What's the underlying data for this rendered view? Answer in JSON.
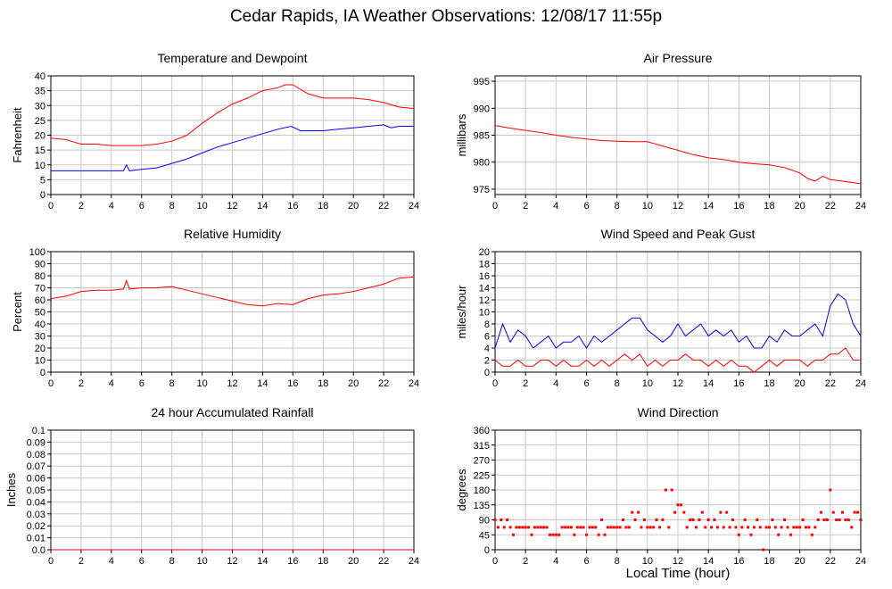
{
  "page": {
    "title": "Cedar Rapids, IA Weather Observations: 12/08/17 11:55p",
    "xlabel": "Local Time (hour)"
  },
  "chart_data": [
    {
      "id": "temp",
      "type": "line",
      "title": "Temperature and Dewpoint",
      "ylabel": "Fahrenheit",
      "xlim": [
        0,
        24
      ],
      "ylim": [
        0,
        40
      ],
      "yticks": [
        0,
        5,
        10,
        15,
        20,
        25,
        30,
        35,
        40
      ],
      "xticks": [
        0,
        2,
        4,
        6,
        8,
        10,
        12,
        14,
        16,
        18,
        20,
        22,
        24
      ],
      "grid": true,
      "series": [
        {
          "color": "#ff0000",
          "x": [
            0,
            1,
            2,
            3,
            4,
            5,
            6,
            7,
            8,
            9,
            10,
            11,
            12,
            13,
            14,
            15,
            15.5,
            16,
            17,
            18,
            19,
            20,
            21,
            22,
            23,
            24
          ],
          "y": [
            19,
            18.5,
            17,
            17,
            16.5,
            16.5,
            16.5,
            17,
            18,
            20,
            24,
            27.5,
            30.5,
            32.5,
            35,
            36,
            37,
            37,
            34,
            32.5,
            32.5,
            32.5,
            32,
            31,
            29.5,
            29
          ]
        },
        {
          "color": "#0000ff",
          "x": [
            0,
            1,
            2,
            3,
            4,
            4.8,
            5,
            5.2,
            6,
            7,
            8,
            9,
            10,
            11,
            12,
            13,
            14,
            15,
            15.9,
            16.5,
            17,
            18,
            19,
            20,
            21,
            22,
            22.5,
            23,
            24
          ],
          "y": [
            8,
            8,
            8,
            8,
            8,
            8,
            10,
            8,
            8.5,
            9,
            10.5,
            12,
            14,
            16,
            17.5,
            19,
            20.5,
            22,
            23,
            21.5,
            21.5,
            21.5,
            22,
            22.5,
            23,
            23.5,
            22.5,
            23,
            23
          ]
        }
      ]
    },
    {
      "id": "pres",
      "type": "line",
      "title": "Air Pressure",
      "ylabel": "millibars",
      "xlim": [
        0,
        24
      ],
      "ylim": [
        974,
        996
      ],
      "yticks": [
        975,
        980,
        985,
        990,
        995
      ],
      "xticks": [
        0,
        2,
        4,
        6,
        8,
        10,
        12,
        14,
        16,
        18,
        20,
        22,
        24
      ],
      "grid": true,
      "series": [
        {
          "color": "#ff0000",
          "x": [
            0,
            1,
            2,
            3,
            4,
            5,
            6,
            7,
            8,
            9,
            10,
            11,
            12,
            13,
            14,
            15,
            16,
            17,
            18,
            19,
            20,
            20.5,
            21,
            21.5,
            22,
            23,
            24
          ],
          "y": [
            986.8,
            986.3,
            985.9,
            985.5,
            985,
            984.6,
            984.3,
            984,
            983.9,
            983.8,
            983.8,
            983,
            982.2,
            981.4,
            980.8,
            980.5,
            980,
            979.7,
            979.5,
            979,
            978,
            977,
            976.5,
            977.4,
            976.8,
            976.4,
            976
          ]
        }
      ]
    },
    {
      "id": "rh",
      "type": "line",
      "title": "Relative Humidity",
      "ylabel": "Percent",
      "xlim": [
        0,
        24
      ],
      "ylim": [
        0,
        100
      ],
      "yticks": [
        0,
        10,
        20,
        30,
        40,
        50,
        60,
        70,
        80,
        90,
        100
      ],
      "xticks": [
        0,
        2,
        4,
        6,
        8,
        10,
        12,
        14,
        16,
        18,
        20,
        22,
        24
      ],
      "grid": true,
      "series": [
        {
          "color": "#ff0000",
          "x": [
            0,
            1,
            2,
            3,
            4,
            4.8,
            5,
            5.2,
            6,
            7,
            8,
            9,
            10,
            11,
            12,
            13,
            14,
            15,
            16,
            17,
            18,
            19,
            20,
            21,
            22,
            23,
            24
          ],
          "y": [
            61,
            63,
            67,
            68,
            68,
            69,
            76,
            69,
            70,
            70,
            71,
            68,
            65,
            62,
            59,
            56,
            55,
            57,
            56,
            61,
            64,
            65,
            67,
            70,
            73,
            78,
            79
          ]
        }
      ]
    },
    {
      "id": "wind",
      "type": "line",
      "title": "Wind Speed and Peak Gust",
      "ylabel": "miles/hour",
      "xlim": [
        0,
        24
      ],
      "ylim": [
        0,
        20
      ],
      "yticks": [
        0,
        2,
        4,
        6,
        8,
        10,
        12,
        14,
        16,
        18,
        20
      ],
      "xticks": [
        0,
        2,
        4,
        6,
        8,
        10,
        12,
        14,
        16,
        18,
        20,
        22,
        24
      ],
      "grid": true,
      "series": [
        {
          "color": "#0000ff",
          "x": [
            0,
            0.5,
            1,
            1.5,
            2,
            2.5,
            3,
            3.5,
            4,
            4.5,
            5,
            5.5,
            6,
            6.5,
            7,
            7.5,
            8,
            8.5,
            9,
            9.5,
            10,
            10.5,
            11,
            11.5,
            12,
            12.5,
            13,
            13.5,
            14,
            14.5,
            15,
            15.5,
            16,
            16.5,
            17,
            17.5,
            18,
            18.5,
            19,
            19.5,
            20,
            20.5,
            21,
            21.5,
            22,
            22.5,
            23,
            23.5,
            24
          ],
          "y": [
            4,
            8,
            5,
            7,
            6,
            4,
            5,
            6,
            4,
            5,
            5,
            6,
            4,
            6,
            5,
            6,
            7,
            8,
            9,
            9,
            7,
            6,
            5,
            6,
            8,
            6,
            7,
            8,
            6,
            7,
            6,
            7,
            5,
            6,
            4,
            4,
            6,
            5,
            7,
            6,
            6,
            7,
            8,
            6,
            11,
            13,
            12,
            8,
            6
          ]
        },
        {
          "color": "#ff0000",
          "x": [
            0,
            0.5,
            1,
            1.5,
            2,
            2.5,
            3,
            3.5,
            4,
            4.5,
            5,
            5.5,
            6,
            6.5,
            7,
            7.5,
            8,
            8.5,
            9,
            9.5,
            10,
            10.5,
            11,
            11.5,
            12,
            12.5,
            13,
            13.5,
            14,
            14.5,
            15,
            15.5,
            16,
            16.5,
            17,
            17.5,
            18,
            18.5,
            19,
            19.5,
            20,
            20.5,
            21,
            21.5,
            22,
            22.5,
            23,
            23.5,
            24
          ],
          "y": [
            2,
            1,
            1,
            2,
            1,
            1,
            2,
            2,
            1,
            2,
            1,
            1,
            2,
            1,
            2,
            1,
            2,
            3,
            2,
            3,
            1,
            2,
            1,
            2,
            2,
            3,
            2,
            2,
            1,
            2,
            1,
            2,
            1,
            1,
            0,
            1,
            2,
            1,
            2,
            2,
            2,
            1,
            2,
            2,
            3,
            3,
            4,
            2,
            2
          ]
        }
      ]
    },
    {
      "id": "rain",
      "type": "line",
      "title": "24 hour Accumulated Rainfall",
      "ylabel": "Inches",
      "xlim": [
        0,
        24
      ],
      "ylim": [
        0,
        0.1
      ],
      "yticks": [
        0.0,
        0.01,
        0.02,
        0.03,
        0.04,
        0.05,
        0.06,
        0.07,
        0.08,
        0.09,
        0.1
      ],
      "ytick_labels": [
        "0.0",
        "0.01",
        "0.02",
        "0.03",
        "0.04",
        "0.05",
        "0.06",
        "0.07",
        "0.08",
        "0.09",
        "0.1"
      ],
      "xticks": [
        0,
        2,
        4,
        6,
        8,
        10,
        12,
        14,
        16,
        18,
        20,
        22,
        24
      ],
      "grid": true,
      "series": [
        {
          "color": "#ff0000",
          "x": [
            0,
            24
          ],
          "y": [
            0,
            0
          ]
        }
      ]
    },
    {
      "id": "wdir",
      "type": "scatter",
      "title": "Wind Direction",
      "ylabel": "degrees",
      "xlim": [
        0,
        24
      ],
      "ylim": [
        0,
        360
      ],
      "yticks": [
        0,
        45,
        90,
        135,
        180,
        225,
        270,
        315,
        360
      ],
      "xticks": [
        0,
        2,
        4,
        6,
        8,
        10,
        12,
        14,
        16,
        18,
        20,
        22,
        24
      ],
      "grid": true,
      "series": [
        {
          "color": "#ff0000",
          "x": [
            0,
            0.2,
            0.4,
            0.6,
            0.8,
            1,
            1.2,
            1.4,
            1.6,
            1.8,
            2,
            2.2,
            2.4,
            2.6,
            2.8,
            3,
            3.2,
            3.4,
            3.6,
            3.8,
            4,
            4.2,
            4.4,
            4.6,
            4.8,
            5,
            5.2,
            5.4,
            5.6,
            5.8,
            6,
            6.2,
            6.4,
            6.6,
            6.8,
            7,
            7.2,
            7.4,
            7.6,
            7.8,
            8,
            8.2,
            8.4,
            8.6,
            8.8,
            9,
            9.2,
            9.4,
            9.6,
            9.8,
            10,
            10.2,
            10.4,
            10.6,
            10.8,
            11,
            11.2,
            11.4,
            11.6,
            11.8,
            12,
            12.2,
            12.4,
            12.6,
            12.8,
            13,
            13.2,
            13.4,
            13.6,
            13.8,
            14,
            14.2,
            14.4,
            14.6,
            14.8,
            15,
            15.2,
            15.4,
            15.6,
            15.8,
            16,
            16.2,
            16.4,
            16.6,
            16.8,
            17,
            17.2,
            17.4,
            17.6,
            17.8,
            18,
            18.2,
            18.4,
            18.6,
            18.8,
            19,
            19.2,
            19.4,
            19.6,
            19.8,
            20,
            20.2,
            20.4,
            20.6,
            20.8,
            21,
            21.2,
            21.4,
            21.6,
            21.8,
            22,
            22.2,
            22.4,
            22.6,
            22.8,
            23,
            23.2,
            23.4,
            23.6,
            23.8,
            24
          ],
          "y": [
            90,
            67.5,
            90,
            67.5,
            90,
            67.5,
            45,
            67.5,
            67.5,
            67.5,
            67.5,
            67.5,
            45,
            67.5,
            67.5,
            67.5,
            67.5,
            67.5,
            45,
            45,
            45,
            45,
            67.5,
            67.5,
            67.5,
            67.5,
            45,
            67.5,
            67.5,
            67.5,
            45,
            67.5,
            67.5,
            67.5,
            45,
            90,
            45,
            67.5,
            67.5,
            67.5,
            67.5,
            67.5,
            90,
            67.5,
            67.5,
            112.5,
            90,
            112.5,
            67.5,
            90,
            67.5,
            67.5,
            67.5,
            90,
            67.5,
            90,
            180,
            67.5,
            180,
            112.5,
            135,
            135,
            112.5,
            67.5,
            90,
            90,
            67.5,
            90,
            112.5,
            67.5,
            90,
            67.5,
            90,
            67.5,
            112.5,
            67.5,
            112.5,
            67.5,
            90,
            67.5,
            45,
            67.5,
            90,
            67.5,
            45,
            67.5,
            90,
            67.5,
            0,
            67.5,
            67.5,
            90,
            67.5,
            45,
            67.5,
            90,
            67.5,
            45,
            67.5,
            67.5,
            67.5,
            90,
            67.5,
            67.5,
            45,
            67.5,
            90,
            112.5,
            90,
            90,
            180,
            112.5,
            90,
            90,
            112.5,
            90,
            90,
            67.5,
            112.5,
            112.5,
            90
          ]
        }
      ]
    }
  ]
}
